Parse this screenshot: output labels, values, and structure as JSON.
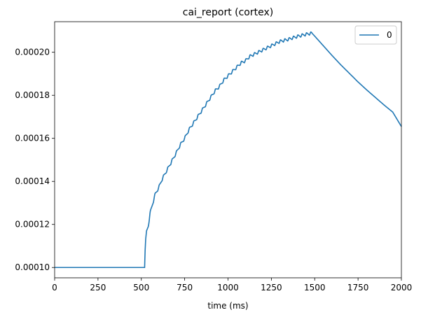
{
  "chart_data": {
    "type": "line",
    "title": "cai_report (cortex)",
    "xlabel": "time (ms)",
    "ylabel": "",
    "xlim": [
      0,
      2000
    ],
    "ylim": [
      9.52e-05,
      0.0002142
    ],
    "xticks": [
      0,
      250,
      500,
      750,
      1000,
      1250,
      1500,
      1750,
      2000
    ],
    "xtick_labels": [
      "0",
      "250",
      "500",
      "750",
      "1000",
      "1250",
      "1500",
      "1750",
      "2000"
    ],
    "yticks": [
      0.0001,
      0.00012,
      0.00014,
      0.00016,
      0.00018,
      0.0002
    ],
    "ytick_labels": [
      "0.00010",
      "0.00012",
      "0.00014",
      "0.00016",
      "0.00018",
      "0.00020"
    ],
    "grid": false,
    "legend_position": "top-right",
    "series": [
      {
        "name": "0",
        "color": "#1f77b4",
        "x": [
          0,
          100,
          200,
          300,
          400,
          500,
          519,
          520,
          522,
          525,
          530,
          540,
          550,
          560,
          570,
          580,
          600,
          620,
          640,
          660,
          680,
          700,
          725,
          750,
          775,
          800,
          825,
          850,
          875,
          900,
          925,
          950,
          975,
          1000,
          1025,
          1050,
          1075,
          1100,
          1125,
          1150,
          1175,
          1200,
          1225,
          1250,
          1275,
          1300,
          1325,
          1350,
          1375,
          1400,
          1425,
          1450,
          1475,
          1485,
          1500,
          1550,
          1600,
          1650,
          1700,
          1750,
          1800,
          1850,
          1900,
          1950,
          2000
        ],
        "y": [
          0.0001,
          0.0001,
          0.0001,
          0.0001,
          0.0001,
          0.0001,
          0.0001,
          0.000103,
          0.000108,
          0.000113,
          0.000117,
          0.000119,
          0.000125,
          0.000128,
          0.000131,
          0.000134,
          0.000137,
          0.000141,
          0.000144,
          0.000147,
          0.00015,
          0.000153,
          0.000157,
          0.00016,
          0.000164,
          0.000167,
          0.00017,
          0.000173,
          0.000176,
          0.000179,
          0.000182,
          0.000184,
          0.000187,
          0.000189,
          0.000191,
          0.000193,
          0.000195,
          0.000196,
          0.000198,
          0.000199,
          0.0002,
          0.000201,
          0.000202,
          0.000203,
          0.000204,
          0.000205,
          0.0002055,
          0.000206,
          0.0002067,
          0.0002073,
          0.0002078,
          0.0002083,
          0.0002087,
          0.0002088,
          0.0002075,
          0.000203,
          0.0001985,
          0.0001942,
          0.0001902,
          0.0001862,
          0.0001825,
          0.000179,
          0.0001755,
          0.0001722,
          0.0001655
        ]
      }
    ]
  }
}
